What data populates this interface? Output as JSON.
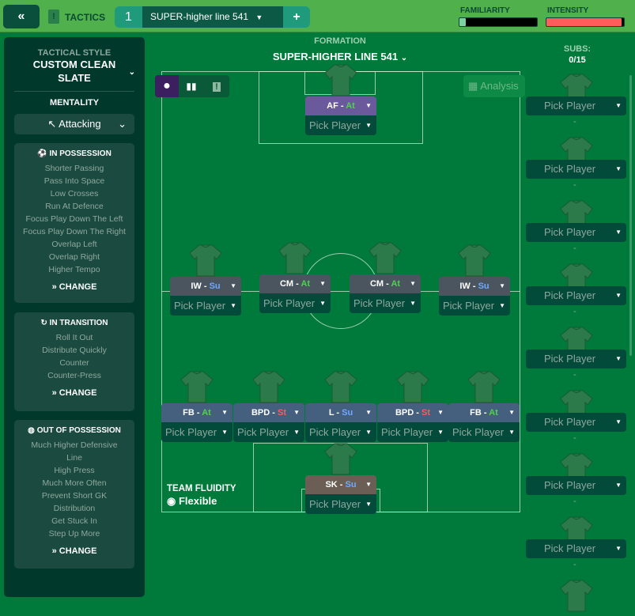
{
  "topbar": {
    "back_icon": "double-chevron-left-icon",
    "tactics_label": "TACTICS",
    "tab_number": "1",
    "tab_name": "SUPER-higher line 541",
    "add_label": "+",
    "familiarity_label": "FAMILIARITY",
    "familiarity_value": 0.08,
    "intensity_label": "INTENSITY",
    "intensity_value": 0.97,
    "intensity_color": "#ff5c5c"
  },
  "sidebar": {
    "tactical_style_label": "TACTICAL STYLE",
    "tactical_style_value": "CUSTOM CLEAN SLATE",
    "mentality_label": "MENTALITY",
    "mentality_value": "Attacking",
    "in_possession": {
      "title": "IN POSSESSION",
      "items": [
        "Shorter Passing",
        "Pass Into Space",
        "Low Crosses",
        "Run At Defence",
        "Focus Play Down The Left",
        "Focus Play Down The Right",
        "Overlap Left",
        "Overlap Right",
        "Higher Tempo"
      ],
      "change": "CHANGE"
    },
    "in_transition": {
      "title": "IN TRANSITION",
      "items": [
        "Roll It Out",
        "Distribute Quickly",
        "Counter",
        "Counter-Press"
      ],
      "change": "CHANGE"
    },
    "out_of_possession": {
      "title": "OUT OF POSSESSION",
      "items": [
        "Much Higher Defensive",
        "Line",
        "High Press",
        "Much More Often",
        "Prevent Short GK",
        "Distribution",
        "Get Stuck In",
        "Step Up More"
      ],
      "change": "CHANGE"
    }
  },
  "formation": {
    "label": "FORMATION",
    "value": "SUPER-HIGHER LINE 541",
    "analysis": "Analysis"
  },
  "subs": {
    "label": "SUBS:",
    "count": "0/15",
    "slots": [
      "Pick Player",
      "Pick Player",
      "Pick Player",
      "Pick Player",
      "Pick Player",
      "Pick Player",
      "Pick Player",
      "Pick Player"
    ],
    "empty": "-"
  },
  "team_fluidity": {
    "label": "TEAM FLUIDITY",
    "value": "Flexible"
  },
  "duty_colors": {
    "At": "#4ed34e",
    "Su": "#6fa8ff",
    "St": "#ff5a5a"
  },
  "players": [
    {
      "role": "AF",
      "duty": "At",
      "player": "Pick Player",
      "color": "#6a5a9c"
    },
    {
      "role": "IW",
      "duty": "Su",
      "player": "Pick Player",
      "color": "#4a5560"
    },
    {
      "role": "CM",
      "duty": "At",
      "player": "Pick Player",
      "color": "#4a5560"
    },
    {
      "role": "CM",
      "duty": "At",
      "player": "Pick Player",
      "color": "#4a5560"
    },
    {
      "role": "IW",
      "duty": "Su",
      "player": "Pick Player",
      "color": "#4a5560"
    },
    {
      "role": "FB",
      "duty": "At",
      "player": "Pick Player",
      "color": "#44607e"
    },
    {
      "role": "BPD",
      "duty": "St",
      "player": "Pick Player",
      "color": "#44607e"
    },
    {
      "role": "L",
      "duty": "Su",
      "player": "Pick Player",
      "color": "#44607e"
    },
    {
      "role": "BPD",
      "duty": "St",
      "player": "Pick Player",
      "color": "#44607e"
    },
    {
      "role": "FB",
      "duty": "At",
      "player": "Pick Player",
      "color": "#44607e"
    },
    {
      "role": "SK",
      "duty": "Su",
      "player": "Pick Player",
      "color": "#6b5f55"
    }
  ]
}
